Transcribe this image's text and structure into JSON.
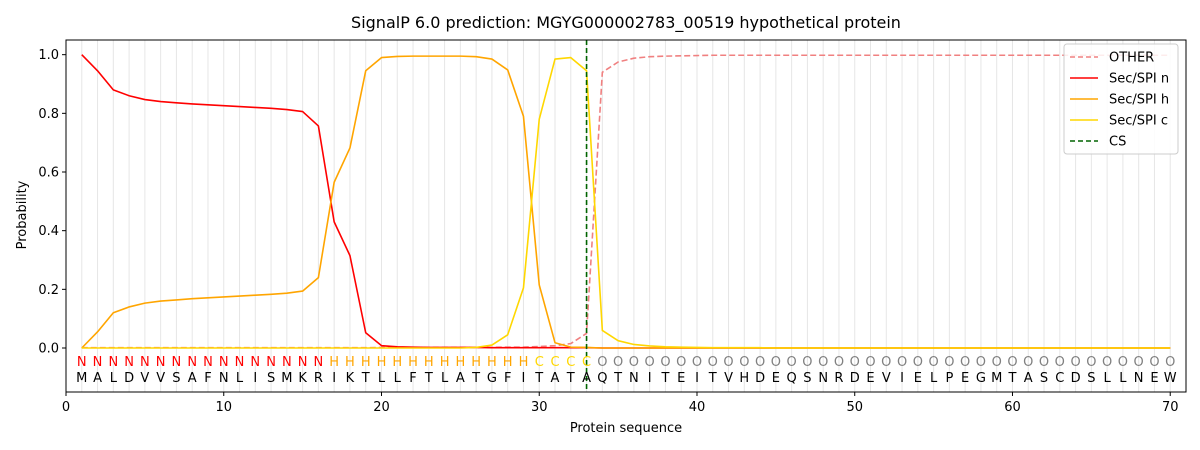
{
  "chart_data": {
    "type": "line",
    "title": "SignalP 6.0 prediction: MGYG000002783_00519 hypothetical protein",
    "xlabel": "Protein sequence",
    "ylabel": "Probability",
    "xlim": [
      0,
      71
    ],
    "ylim": [
      -0.15,
      1.05
    ],
    "x_ticks": [
      0,
      10,
      20,
      30,
      40,
      50,
      60,
      70
    ],
    "y_ticks": [
      0.0,
      0.2,
      0.4,
      0.6,
      0.8,
      1.0
    ],
    "y_tick_labels": [
      "0.0",
      "0.2",
      "0.4",
      "0.6",
      "0.8",
      "1.0"
    ],
    "grid": "vertical lines at each residue",
    "legend_position": "top-right",
    "colors": {
      "OTHER": "#f08080",
      "Sec/SPI n": "#ff0000",
      "Sec/SPI h": "#ffa500",
      "Sec/SPI c": "#ffd700",
      "CS": "#006400",
      "O_label": "#808080"
    },
    "sequence": [
      "M",
      "A",
      "L",
      "D",
      "V",
      "V",
      "S",
      "A",
      "F",
      "N",
      "L",
      "I",
      "S",
      "M",
      "K",
      "R",
      "I",
      "K",
      "T",
      "L",
      "L",
      "F",
      "T",
      "L",
      "A",
      "T",
      "G",
      "F",
      "I",
      "T",
      "A",
      "T",
      "A",
      "Q",
      "T",
      "N",
      "I",
      "T",
      "E",
      "I",
      "T",
      "V",
      "H",
      "D",
      "E",
      "Q",
      "S",
      "N",
      "R",
      "D",
      "E",
      "V",
      "I",
      "E",
      "L",
      "P",
      "E",
      "G",
      "M",
      "T",
      "A",
      "S",
      "C",
      "D",
      "S",
      "L",
      "L",
      "N",
      "E",
      "W"
    ],
    "region_labels": [
      "N",
      "N",
      "N",
      "N",
      "N",
      "N",
      "N",
      "N",
      "N",
      "N",
      "N",
      "N",
      "N",
      "N",
      "N",
      "N",
      "H",
      "H",
      "H",
      "H",
      "H",
      "H",
      "H",
      "H",
      "H",
      "H",
      "H",
      "H",
      "H",
      "C",
      "C",
      "C",
      "C",
      "O",
      "O",
      "O",
      "O",
      "O",
      "O",
      "O",
      "O",
      "O",
      "O",
      "O",
      "O",
      "O",
      "O",
      "O",
      "O",
      "O",
      "O",
      "O",
      "O",
      "O",
      "O",
      "O",
      "O",
      "O",
      "O",
      "O",
      "O",
      "O",
      "O",
      "O",
      "O",
      "O",
      "O",
      "O",
      "O",
      "O"
    ],
    "cleavage_site": 33,
    "series": [
      {
        "name": "OTHER",
        "style": "dashed",
        "values": [
          0.001,
          0.001,
          0.001,
          0.001,
          0.001,
          0.001,
          0.001,
          0.001,
          0.001,
          0.001,
          0.001,
          0.001,
          0.001,
          0.001,
          0.001,
          0.001,
          0.001,
          0.001,
          0.001,
          0.002,
          0.002,
          0.002,
          0.002,
          0.002,
          0.002,
          0.002,
          0.002,
          0.003,
          0.003,
          0.005,
          0.008,
          0.015,
          0.05,
          0.94,
          0.975,
          0.988,
          0.993,
          0.995,
          0.996,
          0.997,
          0.998,
          0.998,
          0.998,
          0.998,
          0.998,
          0.998,
          0.998,
          0.998,
          0.998,
          0.998,
          0.998,
          0.998,
          0.998,
          0.998,
          0.998,
          0.998,
          0.998,
          0.998,
          0.998,
          0.998,
          0.998,
          0.998,
          0.998,
          0.998,
          0.998,
          0.998,
          0.998,
          0.998,
          0.998,
          0.998
        ]
      },
      {
        "name": "Sec/SPI n",
        "style": "solid",
        "values": [
          1.0,
          0.945,
          0.88,
          0.86,
          0.847,
          0.84,
          0.836,
          0.832,
          0.829,
          0.826,
          0.823,
          0.82,
          0.817,
          0.813,
          0.806,
          0.757,
          0.43,
          0.315,
          0.052,
          0.008,
          0.004,
          0.003,
          0.002,
          0.002,
          0.002,
          0.002,
          0.001,
          0.001,
          0.001,
          0.001,
          0.001,
          0.001,
          0.001,
          0.0,
          0.0,
          0.0,
          0.0,
          0.0,
          0.0,
          0.0,
          0.0,
          0.0,
          0.0,
          0.0,
          0.0,
          0.0,
          0.0,
          0.0,
          0.0,
          0.0,
          0.0,
          0.0,
          0.0,
          0.0,
          0.0,
          0.0,
          0.0,
          0.0,
          0.0,
          0.0,
          0.0,
          0.0,
          0.0,
          0.0,
          0.0,
          0.0,
          0.0,
          0.0,
          0.0,
          0.0
        ]
      },
      {
        "name": "Sec/SPI h",
        "style": "solid",
        "values": [
          0.0,
          0.055,
          0.12,
          0.14,
          0.153,
          0.16,
          0.164,
          0.168,
          0.171,
          0.174,
          0.177,
          0.18,
          0.183,
          0.187,
          0.194,
          0.24,
          0.565,
          0.682,
          0.945,
          0.99,
          0.994,
          0.995,
          0.995,
          0.995,
          0.995,
          0.993,
          0.985,
          0.948,
          0.79,
          0.215,
          0.018,
          0.003,
          0.002,
          0.0,
          0.0,
          0.0,
          0.0,
          0.0,
          0.0,
          0.0,
          0.0,
          0.0,
          0.0,
          0.0,
          0.0,
          0.0,
          0.0,
          0.0,
          0.0,
          0.0,
          0.0,
          0.0,
          0.0,
          0.0,
          0.0,
          0.0,
          0.0,
          0.0,
          0.0,
          0.0,
          0.0,
          0.0,
          0.0,
          0.0,
          0.0,
          0.0,
          0.0,
          0.0,
          0.0,
          0.0
        ]
      },
      {
        "name": "Sec/SPI c",
        "style": "solid",
        "values": [
          0.0,
          0.0,
          0.0,
          0.0,
          0.0,
          0.0,
          0.0,
          0.0,
          0.0,
          0.0,
          0.0,
          0.0,
          0.0,
          0.0,
          0.0,
          0.0,
          0.0,
          0.0,
          0.0,
          0.0,
          0.0,
          0.0,
          0.0,
          0.0,
          0.0,
          0.002,
          0.01,
          0.045,
          0.205,
          0.78,
          0.985,
          0.99,
          0.945,
          0.06,
          0.025,
          0.012,
          0.007,
          0.004,
          0.003,
          0.002,
          0.001,
          0.001,
          0.001,
          0.001,
          0.0,
          0.0,
          0.0,
          0.0,
          0.0,
          0.0,
          0.0,
          0.0,
          0.0,
          0.0,
          0.0,
          0.0,
          0.0,
          0.0,
          0.0,
          0.0,
          0.0,
          0.0,
          0.0,
          0.0,
          0.0,
          0.0,
          0.0,
          0.0,
          0.0,
          0.0
        ]
      }
    ],
    "legend": [
      "OTHER",
      "Sec/SPI n",
      "Sec/SPI h",
      "Sec/SPI c",
      "CS"
    ]
  }
}
